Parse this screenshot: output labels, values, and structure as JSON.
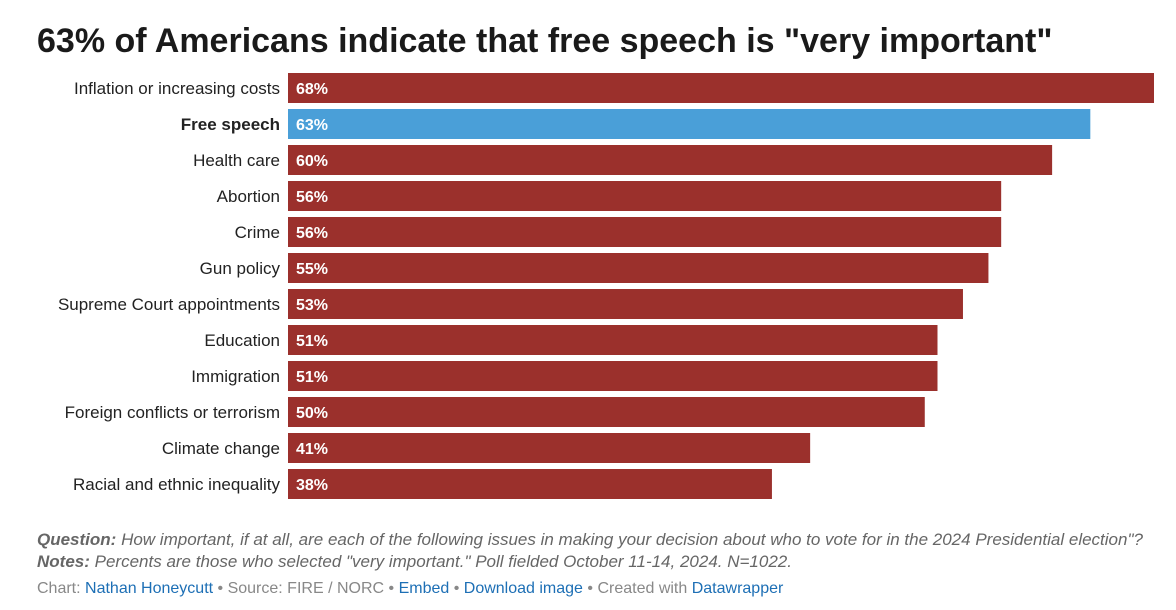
{
  "title": "63% of Americans indicate that free speech is \"very important\"",
  "chart_data": {
    "type": "bar",
    "orientation": "horizontal",
    "categories": [
      "Inflation or increasing costs",
      "Free speech",
      "Health care",
      "Abortion",
      "Crime",
      "Gun policy",
      "Supreme Court appointments",
      "Education",
      "Immigration",
      "Foreign conflicts or terrorism",
      "Climate change",
      "Racial and ethnic inequality"
    ],
    "values": [
      68,
      63,
      60,
      56,
      56,
      55,
      53,
      51,
      51,
      50,
      41,
      38
    ],
    "value_labels": [
      "68%",
      "63%",
      "60%",
      "56%",
      "56%",
      "55%",
      "53%",
      "51%",
      "51%",
      "50%",
      "41%",
      "38%"
    ],
    "highlight_category": "Free speech",
    "colors": {
      "default": "#9b302c",
      "highlight": "#4a9fd8"
    },
    "xlim": [
      0,
      68
    ],
    "grid": false,
    "legend": "none"
  },
  "notes": {
    "question_label": "Question:",
    "question_text": " How important, if at all, are each of the following issues in making your decision about who to vote for in the 2024 Presidential election\"? ",
    "notes_label": "Notes:",
    "notes_text": " Percents are those who selected \"very important.\" Poll fielded October 11-14, 2024. N=1022."
  },
  "credits": {
    "chart_label": "Chart: ",
    "author": "Nathan Honeycutt",
    "source": " • Source: FIRE / NORC • ",
    "embed": "Embed",
    "sep1": "  • ",
    "download": "Download image",
    "created": " • Created with ",
    "tool": "Datawrapper"
  }
}
